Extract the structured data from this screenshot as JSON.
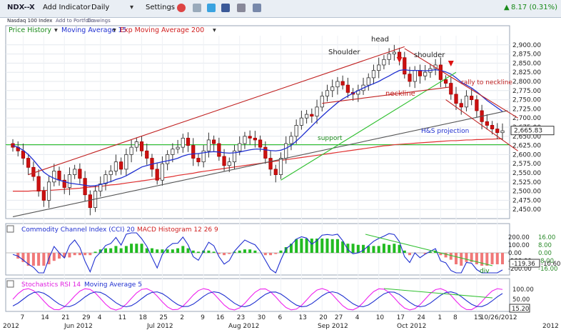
{
  "toolbar": {
    "symbol": "NDX--X",
    "add_indicator": "Add Indicator",
    "interval": "Daily",
    "settings": "Settings",
    "change_text": "8.17 (0.31%)",
    "change_color": "#1a8a1a"
  },
  "subbar": {
    "name": "Nasdaq 100 Index",
    "add_portfolio": "Add to Portfolio",
    "drawings": "Drawings"
  },
  "legend": {
    "price": "Price History",
    "ma": "Moving Average 15",
    "ema": "Exp Moving Average 200",
    "price_color": "#1a8a1a",
    "ma_color": "#1f2fd0",
    "ema_color": "#d02020"
  },
  "panels": {
    "cci_label": "Commodity Channel Index (CCI) 20",
    "macd_label": "MACD Histogram 12 26 9",
    "stoch_label": "Stochastics RSI 14",
    "stoch_ma_label": "Moving Average 5"
  },
  "chart_data": [
    {
      "type": "candlestick",
      "ylim": [
        2425,
        2925
      ],
      "yticks": [
        "2,450.00",
        "2,475.00",
        "2,500.00",
        "2,525.00",
        "2,550.00",
        "2,575.00",
        "2,600.00",
        "2,625.00",
        "2,650.00",
        "2,675.00",
        "2,700.00",
        "2,725.00",
        "2,750.00",
        "2,775.00",
        "2,800.00",
        "2,825.00",
        "2,850.00",
        "2,875.00",
        "2,900.00"
      ],
      "last_price": "2,665.83",
      "closes": [
        2620,
        2610,
        2590,
        2565,
        2540,
        2500,
        2475,
        2525,
        2555,
        2530,
        2510,
        2545,
        2560,
        2535,
        2490,
        2455,
        2500,
        2520,
        2545,
        2555,
        2580,
        2560,
        2600,
        2620,
        2635,
        2610,
        2590,
        2560,
        2530,
        2575,
        2600,
        2615,
        2620,
        2645,
        2625,
        2590,
        2580,
        2610,
        2640,
        2630,
        2595,
        2570,
        2580,
        2610,
        2630,
        2650,
        2645,
        2640,
        2620,
        2590,
        2560,
        2545,
        2590,
        2630,
        2650,
        2680,
        2700,
        2710,
        2705,
        2730,
        2760,
        2775,
        2785,
        2800,
        2790,
        2770,
        2765,
        2775,
        2790,
        2810,
        2830,
        2845,
        2860,
        2875,
        2880,
        2865,
        2820,
        2800,
        2830,
        2815,
        2825,
        2835,
        2845,
        2805,
        2795,
        2765,
        2740,
        2730,
        2760,
        2750,
        2720,
        2690,
        2680,
        2670,
        2660,
        2665
      ],
      "ma15": [
        2625,
        2620,
        2612,
        2600,
        2585,
        2568,
        2552,
        2542,
        2535,
        2530,
        2526,
        2522,
        2520,
        2518,
        2516,
        2514,
        2515,
        2518,
        2522,
        2526,
        2532,
        2536,
        2542,
        2550,
        2558,
        2566,
        2570,
        2574,
        2577,
        2580,
        2583,
        2586,
        2590,
        2596,
        2600,
        2602,
        2603,
        2605,
        2607,
        2608,
        2607,
        2605,
        2604,
        2605,
        2607,
        2610,
        2613,
        2615,
        2615,
        2613,
        2611,
        2610,
        2612,
        2617,
        2625,
        2637,
        2650,
        2664,
        2678,
        2692,
        2705,
        2718,
        2730,
        2742,
        2752,
        2760,
        2768,
        2775,
        2782,
        2788,
        2794,
        2800,
        2808,
        2815,
        2823,
        2830,
        2832,
        2830,
        2830,
        2830,
        2829,
        2830,
        2832,
        2830,
        2826,
        2820,
        2810,
        2798,
        2790,
        2782,
        2772,
        2760,
        2748,
        2738,
        2728,
        2718
      ],
      "ema200": [
        2500,
        2500,
        2500,
        2500,
        2501,
        2501,
        2502,
        2502,
        2503,
        2504,
        2505,
        2506,
        2507,
        2508,
        2510,
        2511,
        2512,
        2513,
        2515,
        2517,
        2518,
        2520,
        2522,
        2524,
        2526,
        2528,
        2530,
        2532,
        2534,
        2536,
        2538,
        2540,
        2543,
        2545,
        2547,
        2549,
        2552,
        2554,
        2556,
        2558,
        2560,
        2562,
        2564,
        2566,
        2568,
        2570,
        2572,
        2574,
        2576,
        2578,
        2580,
        2582,
        2584,
        2586,
        2588,
        2590,
        2592,
        2594,
        2596,
        2598,
        2600,
        2602,
        2604,
        2606,
        2608,
        2610,
        2612,
        2614,
        2616,
        2618,
        2620,
        2622,
        2624,
        2625,
        2627,
        2628,
        2629,
        2630,
        2631,
        2632,
        2633,
        2634,
        2635,
        2636,
        2637,
        2638,
        2638,
        2639,
        2640,
        2640,
        2641,
        2641,
        2642,
        2642,
        2643,
        2643
      ],
      "xticks": [
        "7",
        "14",
        "21",
        "29",
        "4",
        "11",
        "18",
        "25",
        "2",
        "9",
        "16",
        "23",
        "30",
        "6",
        "13",
        "20",
        "27",
        "4",
        "10",
        "17",
        "24",
        "1",
        "8",
        "15",
        "10/26/2012"
      ],
      "xmonths": [
        "2012",
        "Jun 2012",
        "Jul 2012",
        "Aug 2012",
        "Sep 2012",
        "Oct 2012",
        "2012"
      ],
      "annotations": [
        "head",
        "Shoulder",
        "shoulder",
        "rally to neckline",
        "neckline",
        "H&S projection",
        "support"
      ]
    },
    {
      "type": "bar+line",
      "name": "CCI / MACD Histogram",
      "yticks_left": [
        "200.00",
        "100.00",
        "0.00",
        "-100.00",
        "-200.00"
      ],
      "yticks_right": [
        "16.00",
        "8.00",
        "0.00",
        "-8.00",
        "-16.00"
      ],
      "cci_last": "-119.36",
      "macd_last": "-10.60",
      "annotation": "div"
    },
    {
      "type": "line",
      "name": "Stochastics RSI",
      "yticks": [
        "100.00",
        "50.00"
      ],
      "last": "15.20"
    }
  ]
}
